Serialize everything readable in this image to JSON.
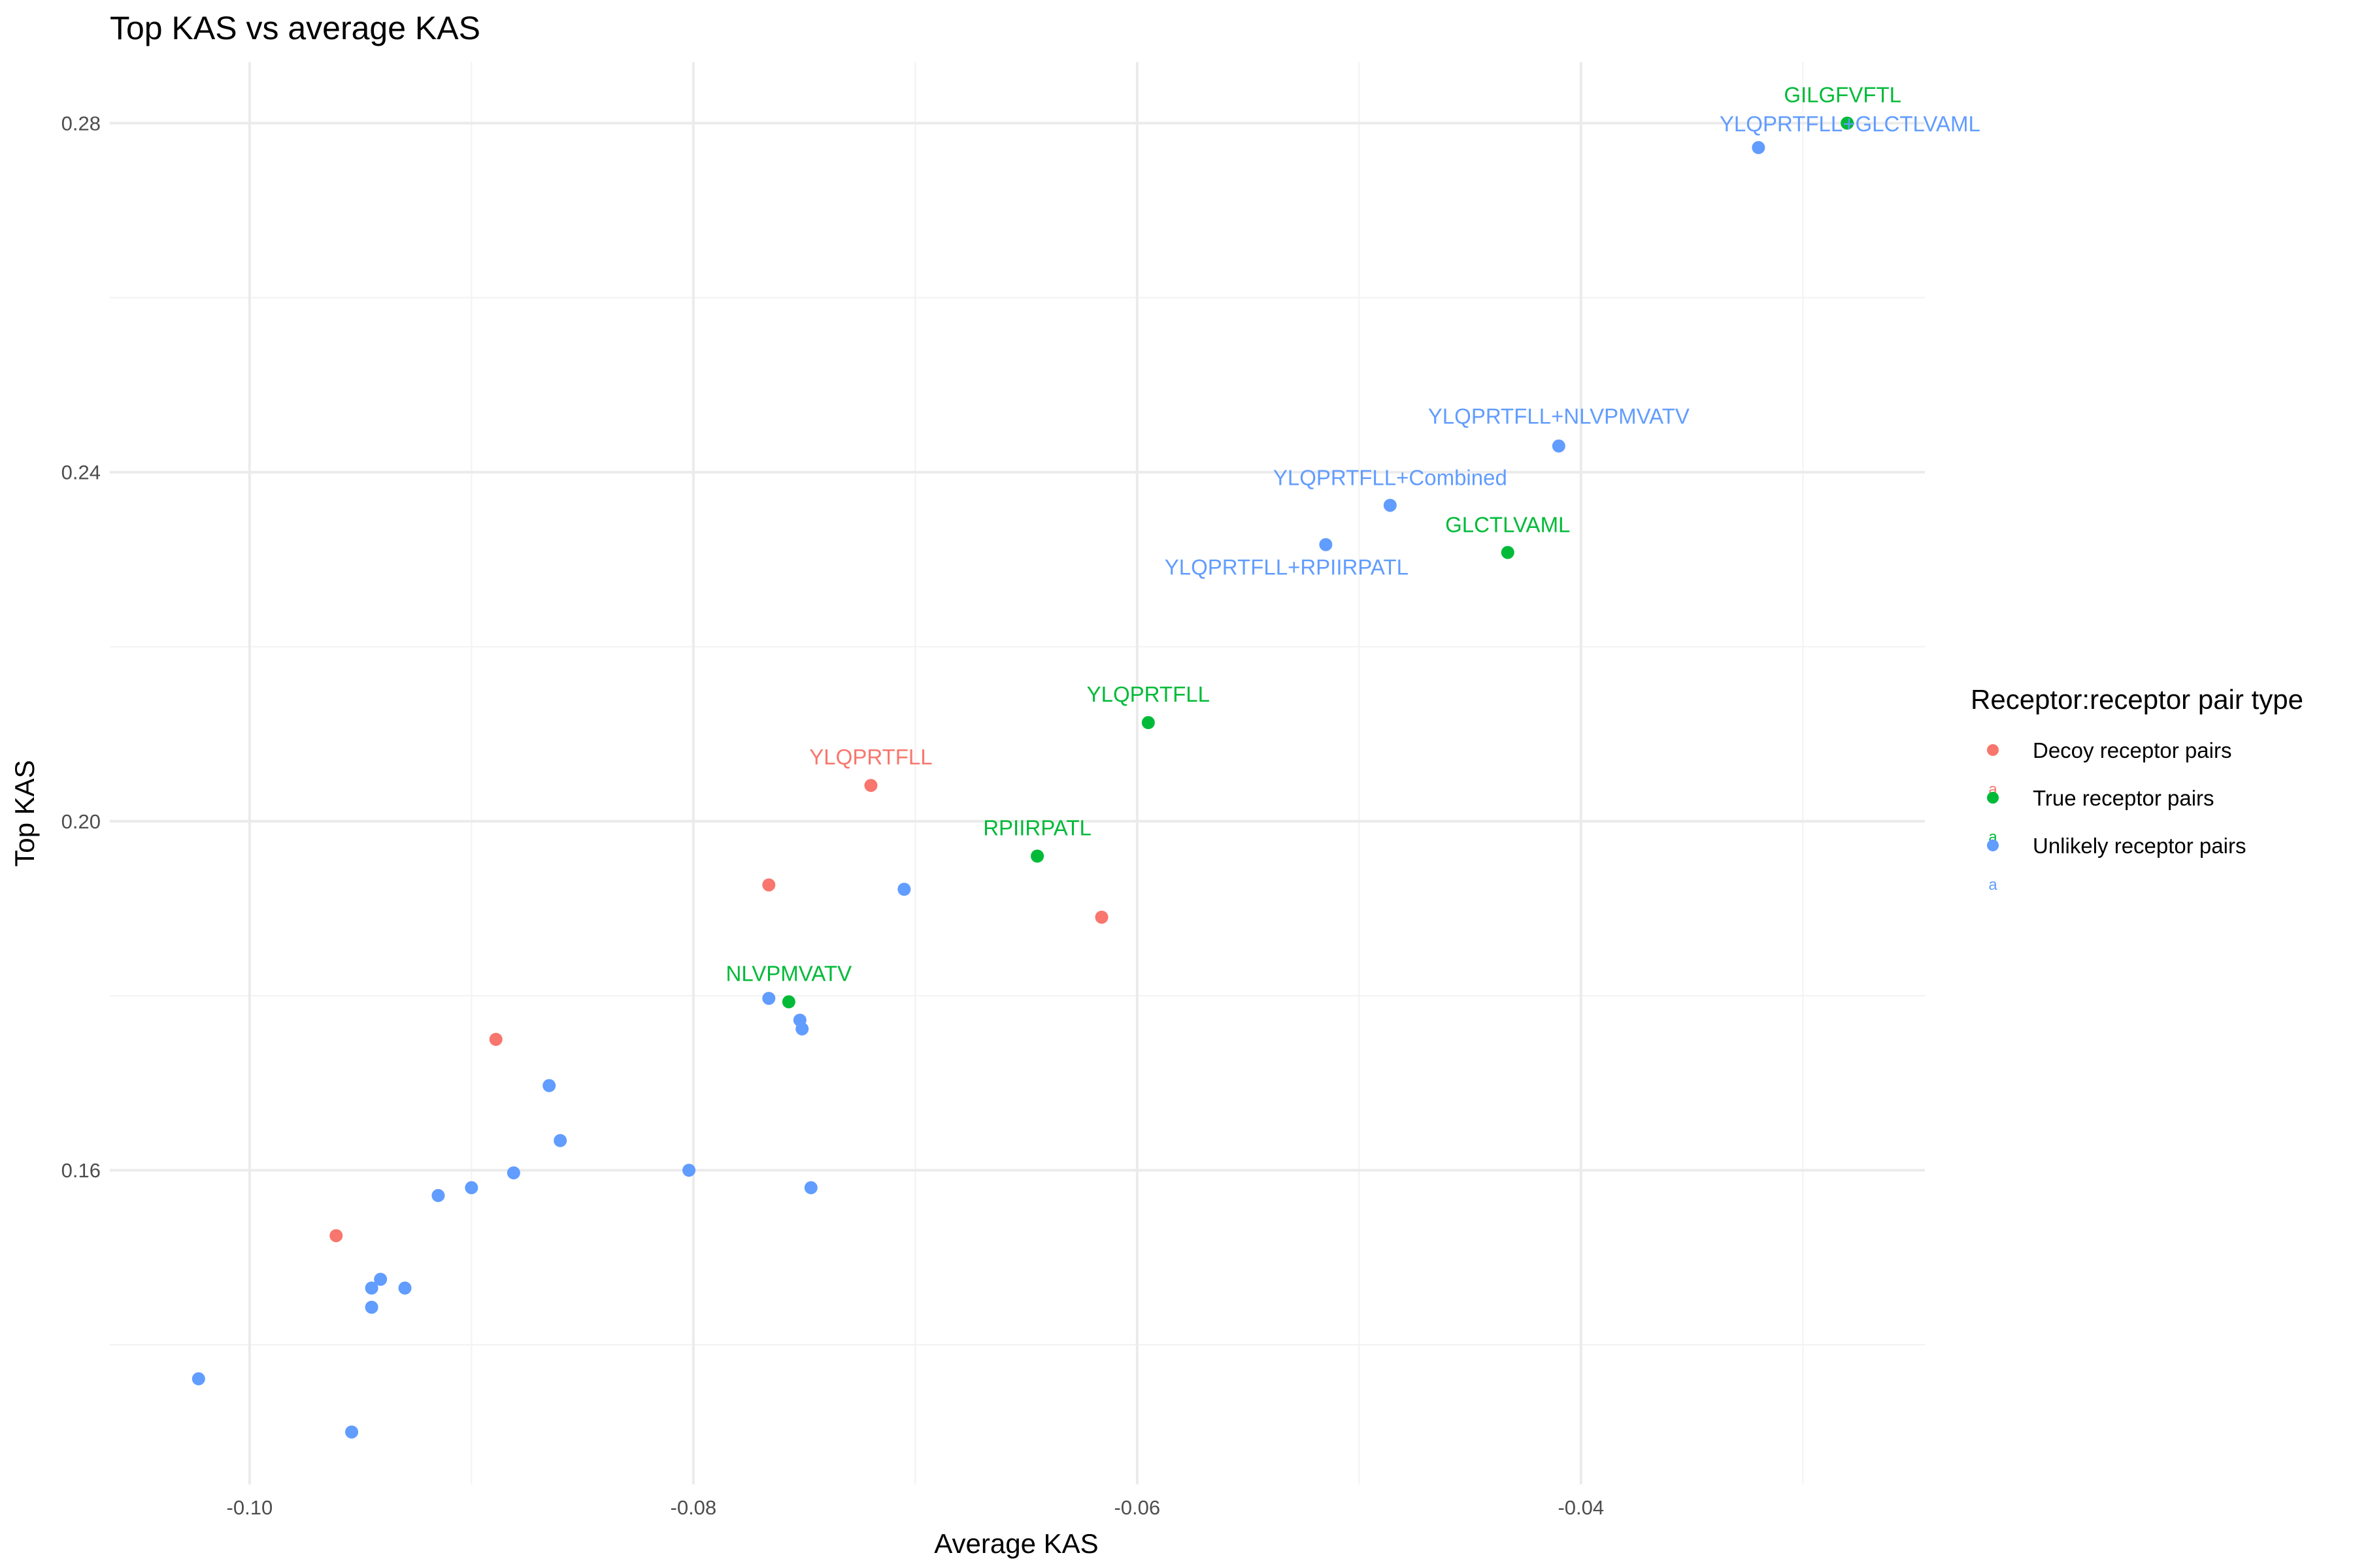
{
  "chart_data": {
    "type": "scatter",
    "title": "Top KAS vs average KAS",
    "xlabel": "Average KAS",
    "ylabel": "Top KAS",
    "xlim": [
      -0.1063,
      -0.0245
    ],
    "ylim": [
      0.124,
      0.287
    ],
    "x_ticks": [
      -0.1,
      -0.08,
      -0.06,
      -0.04
    ],
    "x_tick_labels": [
      "-0.10",
      "-0.08",
      "-0.06",
      "-0.04"
    ],
    "y_ticks": [
      0.16,
      0.2,
      0.24,
      0.28
    ],
    "y_tick_labels": [
      "0.16",
      "0.20",
      "0.24",
      "0.28"
    ],
    "grid": true,
    "legend": {
      "title": "Receptor:receptor pair type",
      "position": "right",
      "key_glyph": "a"
    },
    "series": [
      {
        "name": "Decoy receptor pairs",
        "color": "#F8766D",
        "points": [
          {
            "x": -0.072,
            "y": 0.2041,
            "label": "YLQPRTFLL"
          },
          {
            "x": -0.0766,
            "y": 0.1927
          },
          {
            "x": -0.0616,
            "y": 0.189
          },
          {
            "x": -0.0889,
            "y": 0.175
          },
          {
            "x": -0.0961,
            "y": 0.1525
          }
        ]
      },
      {
        "name": "True receptor pairs",
        "color": "#00BA38",
        "points": [
          {
            "x": -0.028,
            "y": 0.28,
            "label": "GILGFVFTL"
          },
          {
            "x": -0.0433,
            "y": 0.2308,
            "label": "GLCTLVAML"
          },
          {
            "x": -0.0595,
            "y": 0.2113,
            "label": "YLQPRTFLL"
          },
          {
            "x": -0.0645,
            "y": 0.196,
            "label": "RPIIRPATL"
          },
          {
            "x": -0.0757,
            "y": 0.1793,
            "label": "NLVPMVATV"
          }
        ]
      },
      {
        "name": "Unlikely receptor pairs",
        "color": "#619CFF",
        "points": [
          {
            "x": -0.032,
            "y": 0.2772,
            "label": "YLQPRTFLL+GLCTLVAML"
          },
          {
            "x": -0.041,
            "y": 0.243,
            "label": "YLQPRTFLL+NLVPMVATV"
          },
          {
            "x": -0.0486,
            "y": 0.2362,
            "label": "YLQPRTFLL+Combined"
          },
          {
            "x": -0.0515,
            "y": 0.2317,
            "label": "YLQPRTFLL+RPIIRPATL"
          },
          {
            "x": -0.0705,
            "y": 0.1922
          },
          {
            "x": -0.0766,
            "y": 0.1797
          },
          {
            "x": -0.0752,
            "y": 0.1772
          },
          {
            "x": -0.0751,
            "y": 0.1762
          },
          {
            "x": -0.0865,
            "y": 0.1697
          },
          {
            "x": -0.086,
            "y": 0.1634
          },
          {
            "x": -0.0802,
            "y": 0.16
          },
          {
            "x": -0.0881,
            "y": 0.1597
          },
          {
            "x": -0.09,
            "y": 0.158
          },
          {
            "x": -0.0747,
            "y": 0.158
          },
          {
            "x": -0.0915,
            "y": 0.1571
          },
          {
            "x": -0.0941,
            "y": 0.1475
          },
          {
            "x": -0.0945,
            "y": 0.1465
          },
          {
            "x": -0.093,
            "y": 0.1465
          },
          {
            "x": -0.0945,
            "y": 0.1443
          },
          {
            "x": -0.1023,
            "y": 0.1361
          },
          {
            "x": -0.0954,
            "y": 0.13
          }
        ]
      }
    ]
  }
}
